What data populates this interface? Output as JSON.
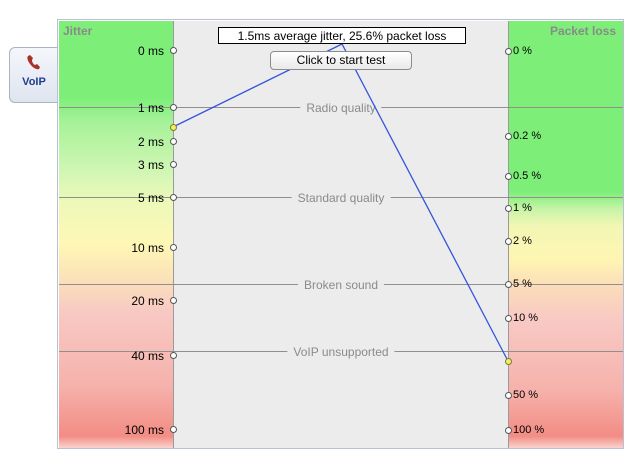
{
  "tab": {
    "label": "VoIP",
    "icon": "phone-icon"
  },
  "headers": {
    "left": "Jitter",
    "right": "Packet loss"
  },
  "summary": "1.5ms average jitter, 25.6% packet loss",
  "start_button": "Click to start test",
  "jitter_ticks": [
    "0 ms",
    "1 ms",
    "2 ms",
    "3 ms",
    "5 ms",
    "10 ms",
    "20 ms",
    "40 ms",
    "100 ms"
  ],
  "loss_ticks": [
    "0 %",
    "0.2 %",
    "0.5 %",
    "1 %",
    "2 %",
    "5 %",
    "10 %",
    "50 %",
    "100 %"
  ],
  "quality_levels": [
    "Radio quality",
    "Standard quality",
    "Broken sound",
    "VoIP unsupported"
  ],
  "result": {
    "jitter_ms": 1.5,
    "packet_loss_pct": 25.6
  },
  "colors": {
    "good": "#7def79",
    "fair": "#fff7b6",
    "bad": "#f28d84",
    "result_line": "#3355dd",
    "result_marker": "#f7ef5a"
  }
}
